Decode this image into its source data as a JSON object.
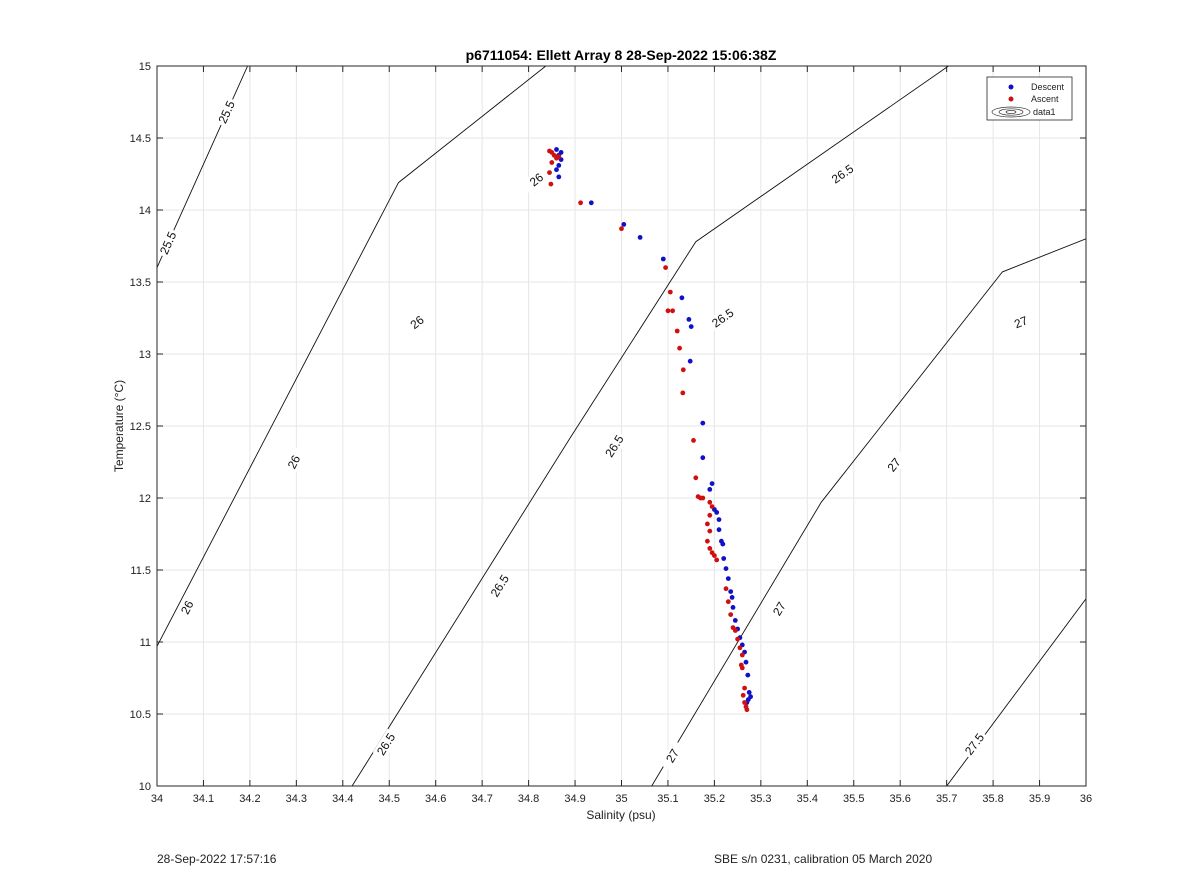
{
  "chart_data": {
    "type": "scatter",
    "title": "p6711054: Ellett Array 8 28-Sep-2022 15:06:38Z",
    "xlabel": "Salinity (psu)",
    "ylabel": "Temperature (°C)",
    "xlim": [
      34,
      36
    ],
    "ylim": [
      10,
      15
    ],
    "xticks": [
      "34",
      "34.1",
      "34.2",
      "34.3",
      "34.4",
      "34.5",
      "34.6",
      "34.7",
      "34.8",
      "34.9",
      "35",
      "35.1",
      "35.2",
      "35.3",
      "35.4",
      "35.5",
      "35.6",
      "35.7",
      "35.8",
      "35.9",
      "36"
    ],
    "yticks": [
      "10",
      "10.5",
      "11",
      "11.5",
      "12",
      "12.5",
      "13",
      "13.5",
      "14",
      "14.5",
      "15"
    ],
    "grid": true,
    "legend_position": "top-right",
    "legend": [
      "Descent",
      "Ascent",
      "data1"
    ],
    "series": [
      {
        "name": "Descent",
        "color": "#1010c8",
        "points": [
          [
            34.86,
            14.42
          ],
          [
            34.87,
            14.4
          ],
          [
            34.865,
            14.38
          ],
          [
            34.87,
            14.35
          ],
          [
            34.865,
            14.31
          ],
          [
            34.86,
            14.28
          ],
          [
            34.865,
            14.23
          ],
          [
            34.935,
            14.05
          ],
          [
            35.005,
            13.9
          ],
          [
            35.04,
            13.81
          ],
          [
            35.09,
            13.66
          ],
          [
            35.13,
            13.39
          ],
          [
            35.145,
            13.24
          ],
          [
            35.15,
            13.19
          ],
          [
            35.148,
            12.95
          ],
          [
            35.175,
            12.52
          ],
          [
            35.175,
            12.28
          ],
          [
            35.19,
            12.06
          ],
          [
            35.195,
            12.1
          ],
          [
            35.2,
            11.92
          ],
          [
            35.205,
            11.9
          ],
          [
            35.21,
            11.85
          ],
          [
            35.21,
            11.78
          ],
          [
            35.215,
            11.7
          ],
          [
            35.218,
            11.68
          ],
          [
            35.22,
            11.58
          ],
          [
            35.225,
            11.51
          ],
          [
            35.23,
            11.44
          ],
          [
            35.235,
            11.35
          ],
          [
            35.238,
            11.31
          ],
          [
            35.24,
            11.24
          ],
          [
            35.245,
            11.15
          ],
          [
            35.25,
            11.09
          ],
          [
            35.255,
            11.03
          ],
          [
            35.26,
            10.98
          ],
          [
            35.265,
            10.93
          ],
          [
            35.268,
            10.86
          ],
          [
            35.272,
            10.77
          ],
          [
            35.275,
            10.65
          ],
          [
            35.278,
            10.62
          ],
          [
            35.273,
            10.6
          ],
          [
            35.27,
            10.58
          ]
        ]
      },
      {
        "name": "Ascent",
        "color": "#d01010",
        "points": [
          [
            34.845,
            14.41
          ],
          [
            34.85,
            14.4
          ],
          [
            34.855,
            14.38
          ],
          [
            34.86,
            14.36
          ],
          [
            34.865,
            14.37
          ],
          [
            34.85,
            14.33
          ],
          [
            34.845,
            14.26
          ],
          [
            34.848,
            14.18
          ],
          [
            34.912,
            14.05
          ],
          [
            35.0,
            13.87
          ],
          [
            35.095,
            13.6
          ],
          [
            35.105,
            13.43
          ],
          [
            35.1,
            13.3
          ],
          [
            35.11,
            13.3
          ],
          [
            35.12,
            13.16
          ],
          [
            35.125,
            13.04
          ],
          [
            35.133,
            12.89
          ],
          [
            35.132,
            12.73
          ],
          [
            35.155,
            12.4
          ],
          [
            35.16,
            12.14
          ],
          [
            35.165,
            12.01
          ],
          [
            35.17,
            12.0
          ],
          [
            35.175,
            12.0
          ],
          [
            35.19,
            11.97
          ],
          [
            35.195,
            11.94
          ],
          [
            35.19,
            11.88
          ],
          [
            35.185,
            11.82
          ],
          [
            35.19,
            11.77
          ],
          [
            35.185,
            11.7
          ],
          [
            35.19,
            11.65
          ],
          [
            35.195,
            11.62
          ],
          [
            35.2,
            11.6
          ],
          [
            35.205,
            11.57
          ],
          [
            35.225,
            11.37
          ],
          [
            35.23,
            11.28
          ],
          [
            35.235,
            11.19
          ],
          [
            35.24,
            11.1
          ],
          [
            35.245,
            11.08
          ],
          [
            35.25,
            11.02
          ],
          [
            35.255,
            10.96
          ],
          [
            35.26,
            10.91
          ],
          [
            35.258,
            10.84
          ],
          [
            35.26,
            10.82
          ],
          [
            35.265,
            10.68
          ],
          [
            35.262,
            10.63
          ],
          [
            35.265,
            10.58
          ],
          [
            35.268,
            10.55
          ],
          [
            35.27,
            10.53
          ]
        ]
      }
    ],
    "isopycnals": [
      {
        "label": "25.5",
        "points": [
          [
            34.0,
            13.6
          ],
          [
            34.195,
            15.0
          ]
        ],
        "label_positions": [
          [
            34.024,
            13.77
          ],
          [
            34.15,
            14.68
          ]
        ]
      },
      {
        "label": "26",
        "points": [
          [
            34.0,
            10.97
          ],
          [
            34.52,
            14.19
          ],
          [
            34.837,
            15.0
          ]
        ],
        "label_positions": [
          [
            34.065,
            11.24
          ],
          [
            34.295,
            12.25
          ],
          [
            34.56,
            13.22
          ],
          [
            34.817,
            14.21
          ]
        ]
      },
      {
        "label": "26.5",
        "points": [
          [
            34.42,
            10.0
          ],
          [
            34.89,
            12.42
          ],
          [
            35.16,
            13.78
          ],
          [
            35.704,
            15.0
          ]
        ],
        "label_positions": [
          [
            34.493,
            10.29
          ],
          [
            34.738,
            11.39
          ],
          [
            34.985,
            12.36
          ],
          [
            35.218,
            13.25
          ],
          [
            35.476,
            14.25
          ]
        ]
      },
      {
        "label": "27",
        "points": [
          [
            35.065,
            10.0
          ],
          [
            35.43,
            11.97
          ],
          [
            35.82,
            13.57
          ],
          [
            36.0,
            13.8
          ]
        ],
        "label_positions": [
          [
            35.11,
            10.21
          ],
          [
            35.34,
            11.23
          ],
          [
            35.587,
            12.23
          ],
          [
            35.86,
            13.22
          ]
        ]
      },
      {
        "label": "27.5",
        "points": [
          [
            35.7,
            10.0
          ],
          [
            36.0,
            11.3
          ]
        ],
        "label_positions": [
          [
            35.76,
            10.29
          ]
        ]
      }
    ]
  },
  "footer": {
    "left": "28-Sep-2022 17:57:16",
    "right": "SBE s/n 0231, calibration 05 March 2020"
  }
}
